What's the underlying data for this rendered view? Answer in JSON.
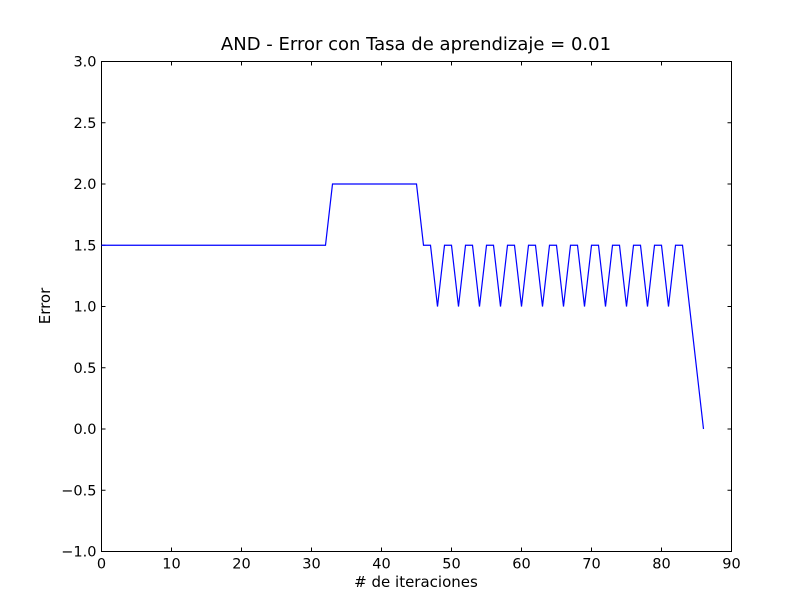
{
  "chart_data": {
    "type": "line",
    "title": "AND - Error con Tasa de aprendizaje = 0.01",
    "xlabel": "# de iteraciones",
    "ylabel": "Error",
    "xlim": [
      0,
      90
    ],
    "ylim": [
      -1.0,
      3.0
    ],
    "xticks": [
      0,
      10,
      20,
      30,
      40,
      50,
      60,
      70,
      80,
      90
    ],
    "xtick_labels": [
      "0",
      "10",
      "20",
      "30",
      "40",
      "50",
      "60",
      "70",
      "80",
      "90"
    ],
    "yticks": [
      -1.0,
      -0.5,
      0.0,
      0.5,
      1.0,
      1.5,
      2.0,
      2.5,
      3.0
    ],
    "ytick_labels": [
      "−1.0",
      "−0.5",
      "0.0",
      "0.5",
      "1.0",
      "1.5",
      "2.0",
      "2.5",
      "3.0"
    ],
    "grid": false,
    "series": [
      {
        "color": "#0000ff",
        "x": [
          0,
          1,
          2,
          3,
          4,
          5,
          6,
          7,
          8,
          9,
          10,
          11,
          12,
          13,
          14,
          15,
          16,
          17,
          18,
          19,
          20,
          21,
          22,
          23,
          24,
          25,
          26,
          27,
          28,
          29,
          30,
          31,
          32,
          33,
          34,
          35,
          36,
          37,
          38,
          39,
          40,
          41,
          42,
          43,
          44,
          45,
          46,
          47,
          48,
          49,
          50,
          51,
          52,
          53,
          54,
          55,
          56,
          57,
          58,
          59,
          60,
          61,
          62,
          63,
          64,
          65,
          66,
          67,
          68,
          69,
          70,
          71,
          72,
          73,
          74,
          75,
          76,
          77,
          78,
          79,
          80,
          81,
          82,
          83,
          84,
          85,
          86
        ],
        "y": [
          1.5,
          1.5,
          1.5,
          1.5,
          1.5,
          1.5,
          1.5,
          1.5,
          1.5,
          1.5,
          1.5,
          1.5,
          1.5,
          1.5,
          1.5,
          1.5,
          1.5,
          1.5,
          1.5,
          1.5,
          1.5,
          1.5,
          1.5,
          1.5,
          1.5,
          1.5,
          1.5,
          1.5,
          1.5,
          1.5,
          1.5,
          1.5,
          1.5,
          2.0,
          2.0,
          2.0,
          2.0,
          2.0,
          2.0,
          2.0,
          2.0,
          2.0,
          2.0,
          2.0,
          2.0,
          2.0,
          1.5,
          1.5,
          1.0,
          1.5,
          1.5,
          1.0,
          1.5,
          1.5,
          1.0,
          1.5,
          1.5,
          1.0,
          1.5,
          1.5,
          1.0,
          1.5,
          1.5,
          1.0,
          1.5,
          1.5,
          1.0,
          1.5,
          1.5,
          1.0,
          1.5,
          1.5,
          1.0,
          1.5,
          1.5,
          1.0,
          1.5,
          1.5,
          1.0,
          1.5,
          1.5,
          1.0,
          1.5,
          1.5,
          1.0,
          0.5,
          0.0
        ]
      }
    ]
  }
}
